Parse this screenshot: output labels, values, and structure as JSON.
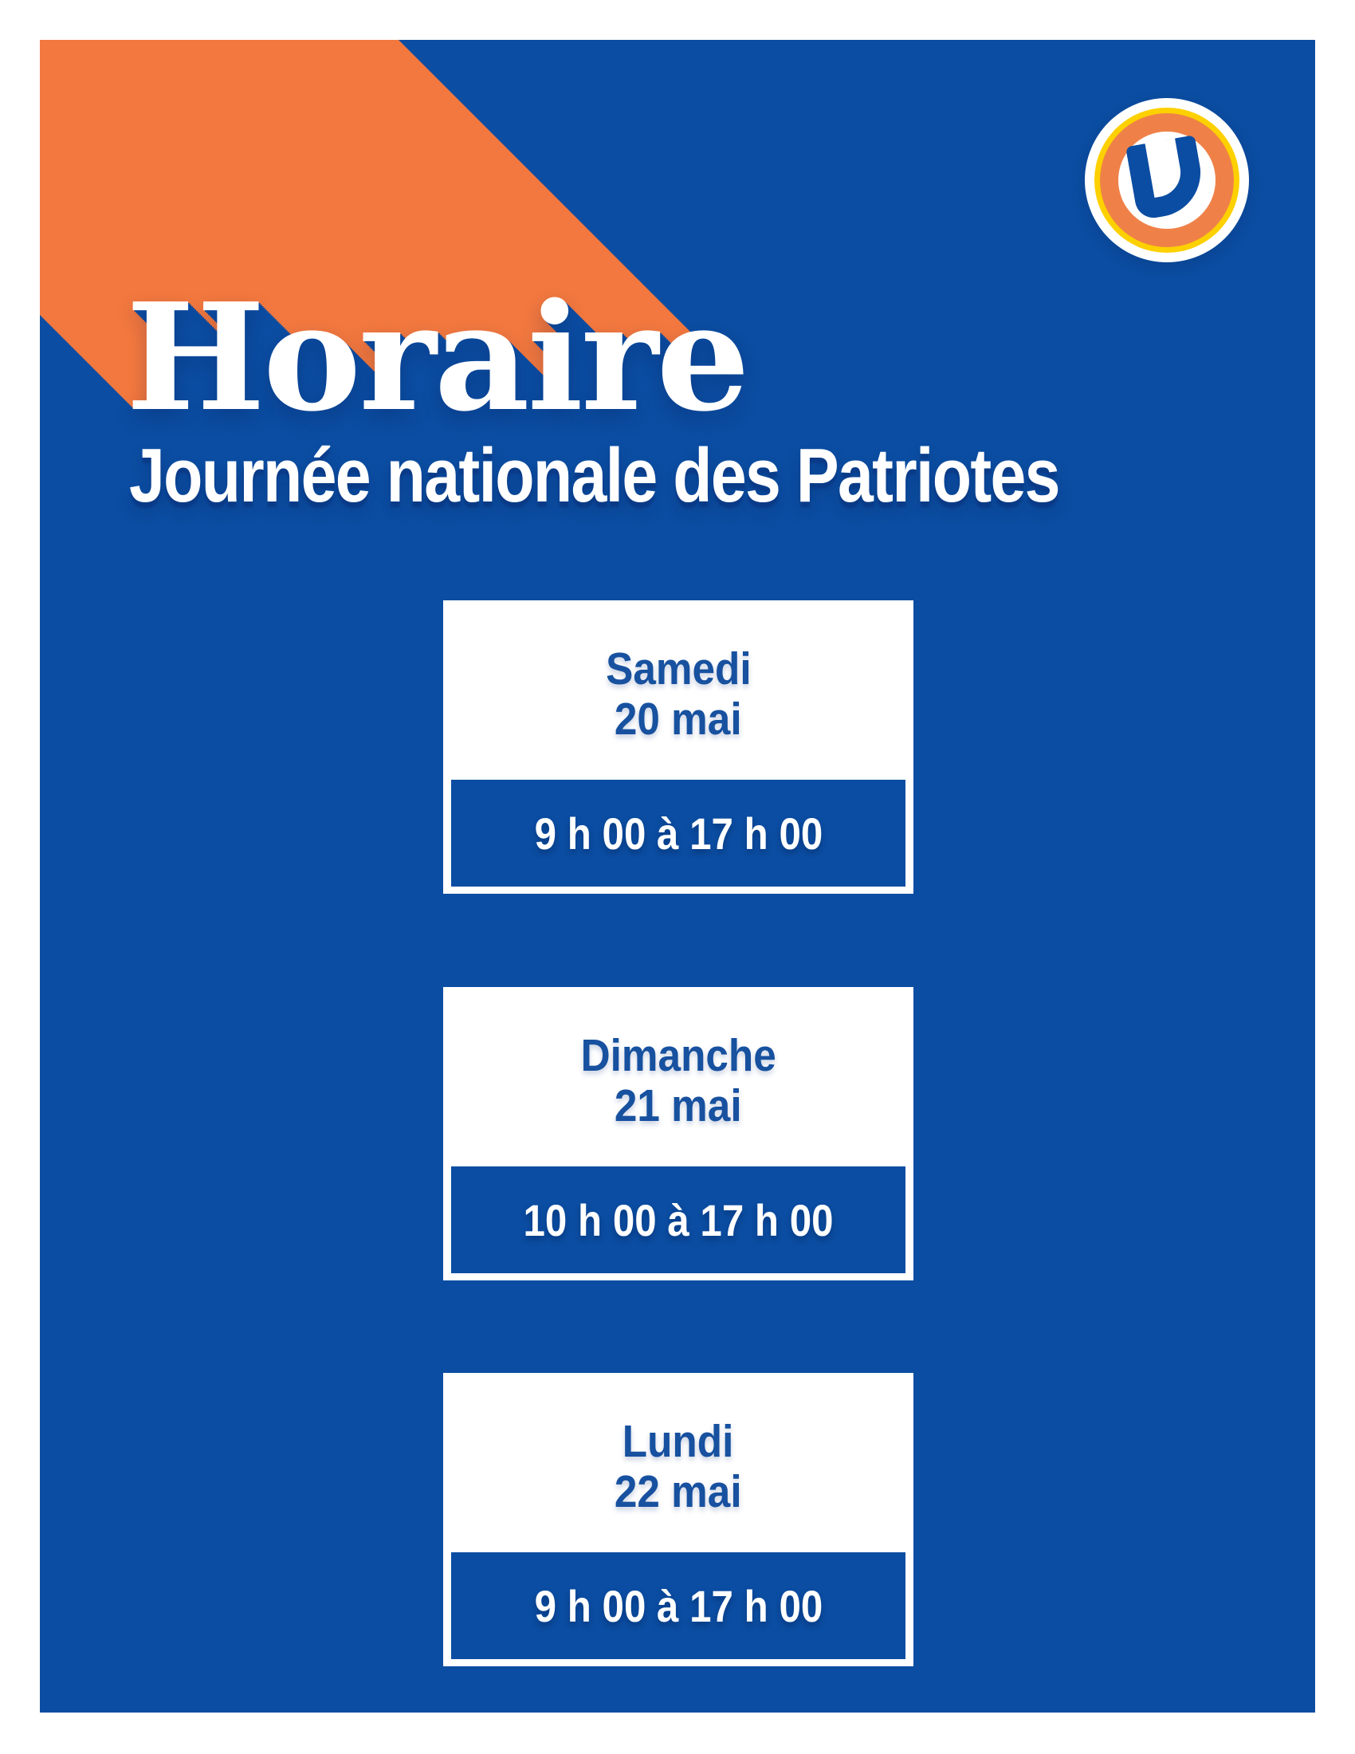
{
  "palette": {
    "blue": "#0b4da2",
    "orange": "#f2783f",
    "logo_yellow": "#fdd000",
    "logo_orange": "#ef8148",
    "day_text_blue": "#17519f"
  },
  "header": {
    "title": "Horaire",
    "subtitle": "Journée nationale des Patriotes"
  },
  "logo": {
    "letter": "U"
  },
  "schedule": [
    {
      "day": "Samedi",
      "date": "20 mai",
      "hours": "9 h 00 à 17 h 00"
    },
    {
      "day": "Dimanche",
      "date": "21 mai",
      "hours": "10 h 00 à 17 h 00"
    },
    {
      "day": "Lundi",
      "date": "22 mai",
      "hours": "9 h 00 à 17 h 00"
    }
  ]
}
